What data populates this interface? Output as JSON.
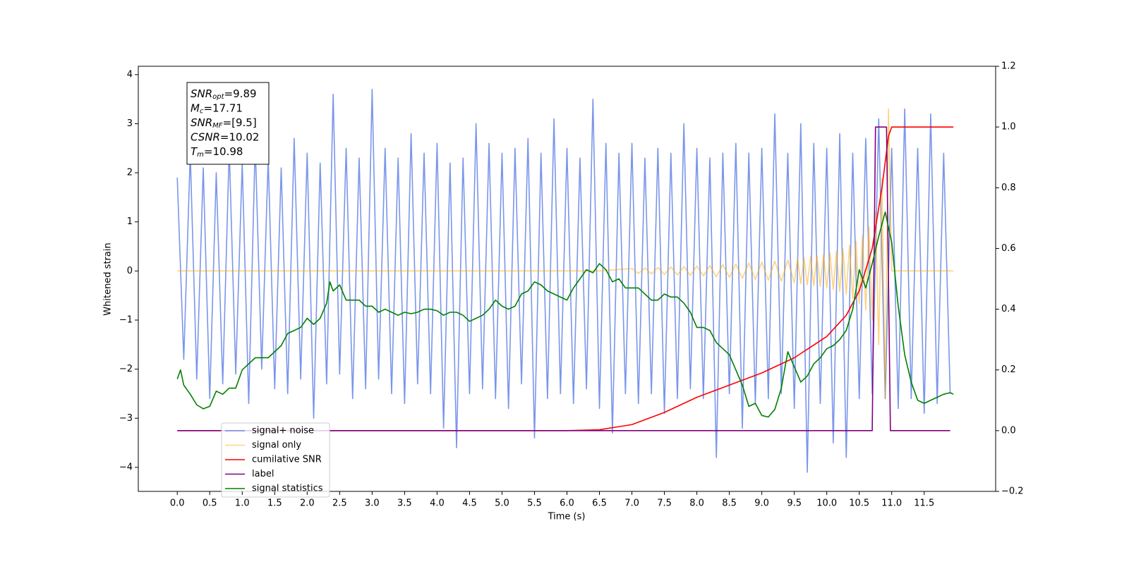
{
  "chart_data": {
    "type": "line",
    "xlabel": "Time (s)",
    "ylabel": "Whitened strain",
    "xlim": [
      -0.6,
      12.6
    ],
    "ylim": [
      -4.49,
      4.17
    ],
    "y2lim": [
      -0.2,
      1.2
    ],
    "xticks": [
      {
        "value": 0,
        "label": "0.0"
      },
      0.5,
      {
        "value": 1,
        "label": "1.0"
      },
      1.5,
      {
        "value": 2,
        "label": "2.0"
      },
      2.5,
      {
        "value": 3,
        "label": "3.0"
      },
      3.5,
      {
        "value": 4,
        "label": "4.0"
      },
      4.5,
      {
        "value": 5,
        "label": "5.0"
      },
      5.5,
      {
        "value": 6,
        "label": "6.0"
      },
      6.5,
      {
        "value": 7,
        "label": "7.0"
      },
      7.5,
      {
        "value": 8,
        "label": "8.0"
      },
      8.5,
      {
        "value": 9,
        "label": "9.0"
      },
      9.5,
      {
        "value": 10,
        "label": "10.0"
      },
      10.5,
      {
        "value": 11,
        "label": "11.0"
      },
      11.5
    ],
    "yticks": [
      {
        "value": -4,
        "label": "−4"
      },
      {
        "value": -3,
        "label": "−3"
      },
      {
        "value": -2,
        "label": "−2"
      },
      {
        "value": -1,
        "label": "−1"
      },
      0,
      1,
      2,
      3,
      4
    ],
    "y2ticks": [
      {
        "value": -0.2,
        "label": "−0.2"
      },
      {
        "value": 0,
        "label": "0.0"
      },
      0.2,
      0.4,
      0.6,
      0.8,
      {
        "value": 1,
        "label": "1.0"
      },
      1.2
    ],
    "grid": false,
    "legend": "lower left",
    "annotation": [
      {
        "main": "SNR",
        "sub": "opt",
        "rest": "=9.89"
      },
      {
        "main": "M",
        "sub": "c",
        "rest": "=17.71"
      },
      {
        "main": "SNR",
        "sub": "MF",
        "rest": "=[9.5]"
      },
      {
        "main": "CSNR",
        "rest": "=10.02"
      },
      {
        "main": "T",
        "sub": "m",
        "rest": "=10.98"
      }
    ],
    "series": [
      {
        "name": "signal+ noise",
        "color": "royalblue",
        "opacity": 0.7,
        "axis": "y",
        "x": [
          0,
          0.1,
          0.2,
          0.3,
          0.4,
          0.5,
          0.6,
          0.7,
          0.8,
          0.9,
          1,
          1.1,
          1.2,
          1.3,
          1.4,
          1.5,
          1.6,
          1.7,
          1.8,
          1.9,
          2,
          2.1,
          2.2,
          2.3,
          2.4,
          2.5,
          2.6,
          2.7,
          2.8,
          2.9,
          3,
          3.1,
          3.2,
          3.3,
          3.4,
          3.5,
          3.6,
          3.7,
          3.8,
          3.9,
          4,
          4.1,
          4.2,
          4.3,
          4.4,
          4.5,
          4.6,
          4.7,
          4.8,
          4.9,
          5,
          5.1,
          5.2,
          5.3,
          5.4,
          5.5,
          5.6,
          5.7,
          5.8,
          5.9,
          6,
          6.1,
          6.2,
          6.3,
          6.4,
          6.5,
          6.6,
          6.7,
          6.8,
          6.9,
          7,
          7.1,
          7.2,
          7.3,
          7.4,
          7.5,
          7.6,
          7.7,
          7.8,
          7.9,
          8,
          8.1,
          8.2,
          8.3,
          8.4,
          8.5,
          8.6,
          8.7,
          8.8,
          8.9,
          9,
          9.1,
          9.2,
          9.3,
          9.4,
          9.5,
          9.6,
          9.7,
          9.8,
          9.9,
          10,
          10.1,
          10.2,
          10.3,
          10.4,
          10.5,
          10.6,
          10.7,
          10.8,
          10.9,
          11,
          11.1,
          11.2,
          11.3,
          11.4,
          11.5,
          11.6,
          11.7,
          11.8,
          11.9
        ],
        "values": [
          1.9,
          -1.8,
          2.4,
          -2.2,
          2.1,
          -2.6,
          2.0,
          -2.3,
          2.5,
          -2.1,
          2.2,
          -2.7,
          2.6,
          -2.0,
          2.3,
          -2.4,
          2.1,
          -2.5,
          2.7,
          -2.2,
          2.4,
          -3.0,
          2.2,
          -2.3,
          3.6,
          -2.1,
          2.5,
          -2.6,
          2.3,
          -2.4,
          3.7,
          -2.2,
          2.5,
          -2.5,
          2.3,
          -2.7,
          2.8,
          -2.3,
          2.4,
          -2.5,
          2.6,
          -3.2,
          2.2,
          -3.6,
          2.3,
          -2.5,
          3.0,
          -2.4,
          2.6,
          -2.6,
          2.4,
          -2.8,
          2.5,
          -2.3,
          2.7,
          -3.4,
          2.4,
          -2.6,
          3.1,
          -2.5,
          2.5,
          -2.7,
          2.3,
          -2.4,
          3.5,
          -2.8,
          2.6,
          -3.3,
          2.4,
          -2.5,
          2.6,
          -2.7,
          2.3,
          -2.5,
          2.5,
          -2.9,
          2.4,
          -2.6,
          3.0,
          -2.4,
          2.5,
          -2.6,
          2.3,
          -3.8,
          2.4,
          -2.5,
          2.6,
          -3.2,
          2.4,
          -2.7,
          2.5,
          -2.6,
          3.2,
          -2.5,
          2.4,
          -2.8,
          3.0,
          -4.1,
          2.6,
          -2.7,
          2.5,
          -3.5,
          2.8,
          -3.8,
          2.4,
          -2.6,
          2.7,
          -2.5,
          3.1,
          -2.6,
          2.5,
          -2.8,
          3.3,
          -2.6,
          2.5,
          -2.9,
          3.2,
          -2.7,
          2.4,
          -2.5
        ]
      },
      {
        "name": "signal only",
        "color": "orange",
        "opacity": 0.5,
        "axis": "y",
        "x": [
          0,
          6.5,
          7,
          7.1,
          7.2,
          7.3,
          7.4,
          7.5,
          7.6,
          7.7,
          7.8,
          7.9,
          8,
          8.1,
          8.2,
          8.3,
          8.4,
          8.5,
          8.6,
          8.7,
          8.8,
          8.9,
          9,
          9.1,
          9.2,
          9.3,
          9.4,
          9.5,
          9.55,
          9.6,
          9.65,
          9.7,
          9.75,
          9.8,
          9.85,
          9.9,
          9.95,
          10,
          10.05,
          10.1,
          10.15,
          10.2,
          10.25,
          10.3,
          10.35,
          10.4,
          10.45,
          10.5,
          10.55,
          10.6,
          10.65,
          10.7,
          10.75,
          10.8,
          10.85,
          10.9,
          10.95,
          11,
          11.95
        ],
        "values": [
          0,
          0,
          0.05,
          -0.05,
          0.06,
          -0.06,
          0.07,
          -0.07,
          0.08,
          -0.08,
          0.09,
          -0.09,
          0.1,
          -0.1,
          0.11,
          -0.12,
          0.13,
          -0.13,
          0.14,
          -0.15,
          0.16,
          -0.17,
          0.18,
          -0.19,
          0.2,
          -0.21,
          0.22,
          -0.24,
          0.25,
          -0.26,
          0.27,
          -0.28,
          0.29,
          -0.3,
          0.31,
          -0.32,
          0.33,
          -0.35,
          0.36,
          -0.38,
          0.4,
          -0.42,
          0.45,
          -0.48,
          0.52,
          -0.56,
          0.6,
          -0.66,
          0.72,
          -0.8,
          0.9,
          -1.0,
          1.2,
          -1.5,
          1.9,
          -2.6,
          3.3,
          0,
          0
        ]
      },
      {
        "name": "cumilative SNR",
        "color": "red",
        "opacity": 1,
        "axis": "y2",
        "x": [
          0,
          6,
          6.5,
          7,
          7.5,
          8,
          8.5,
          9,
          9.5,
          10,
          10.3,
          10.5,
          10.7,
          10.85,
          10.95,
          11,
          11.95
        ],
        "values": [
          0,
          0,
          0.003,
          0.02,
          0.06,
          0.11,
          0.15,
          0.19,
          0.24,
          0.31,
          0.38,
          0.46,
          0.6,
          0.8,
          0.97,
          1.0,
          1.0
        ]
      },
      {
        "name": "label",
        "color": "purple",
        "opacity": 1,
        "axis": "y2",
        "x": [
          0,
          10.7,
          10.75,
          10.92,
          10.98,
          11.9
        ],
        "values": [
          0,
          0,
          1,
          1,
          0,
          0
        ]
      },
      {
        "name": "signal statistics",
        "color": "green",
        "opacity": 1,
        "axis": "y2",
        "x": [
          0,
          0.05,
          0.1,
          0.2,
          0.3,
          0.4,
          0.5,
          0.6,
          0.7,
          0.8,
          0.9,
          1,
          1.1,
          1.2,
          1.3,
          1.4,
          1.5,
          1.6,
          1.7,
          1.8,
          1.9,
          2,
          2.1,
          2.2,
          2.3,
          2.35,
          2.4,
          2.5,
          2.6,
          2.7,
          2.8,
          2.9,
          3,
          3.1,
          3.2,
          3.3,
          3.4,
          3.5,
          3.6,
          3.7,
          3.8,
          3.9,
          4,
          4.1,
          4.2,
          4.3,
          4.4,
          4.5,
          4.6,
          4.7,
          4.8,
          4.9,
          5,
          5.1,
          5.2,
          5.3,
          5.4,
          5.5,
          5.6,
          5.7,
          5.8,
          5.9,
          6,
          6.1,
          6.2,
          6.3,
          6.4,
          6.5,
          6.6,
          6.7,
          6.8,
          6.9,
          7,
          7.1,
          7.2,
          7.3,
          7.4,
          7.5,
          7.6,
          7.7,
          7.8,
          7.9,
          8,
          8.1,
          8.2,
          8.3,
          8.4,
          8.5,
          8.6,
          8.7,
          8.8,
          8.9,
          9,
          9.1,
          9.2,
          9.3,
          9.4,
          9.5,
          9.6,
          9.7,
          9.8,
          9.9,
          10,
          10.1,
          10.2,
          10.3,
          10.4,
          10.5,
          10.6,
          10.7,
          10.8,
          10.9,
          11,
          11.1,
          11.2,
          11.3,
          11.4,
          11.5,
          11.6,
          11.7,
          11.8,
          11.9,
          11.95
        ],
        "values": [
          0.17,
          0.2,
          0.15,
          0.12,
          0.085,
          0.072,
          0.08,
          0.13,
          0.12,
          0.14,
          0.14,
          0.2,
          0.22,
          0.24,
          0.24,
          0.24,
          0.26,
          0.28,
          0.32,
          0.33,
          0.34,
          0.37,
          0.35,
          0.37,
          0.42,
          0.49,
          0.46,
          0.48,
          0.43,
          0.43,
          0.43,
          0.41,
          0.41,
          0.39,
          0.4,
          0.39,
          0.38,
          0.39,
          0.385,
          0.39,
          0.4,
          0.4,
          0.395,
          0.38,
          0.39,
          0.39,
          0.38,
          0.36,
          0.37,
          0.38,
          0.4,
          0.43,
          0.41,
          0.4,
          0.41,
          0.45,
          0.46,
          0.49,
          0.48,
          0.46,
          0.45,
          0.44,
          0.43,
          0.47,
          0.5,
          0.53,
          0.52,
          0.55,
          0.53,
          0.49,
          0.5,
          0.47,
          0.47,
          0.47,
          0.45,
          0.43,
          0.43,
          0.45,
          0.44,
          0.44,
          0.42,
          0.39,
          0.34,
          0.34,
          0.33,
          0.29,
          0.27,
          0.25,
          0.2,
          0.15,
          0.08,
          0.09,
          0.05,
          0.045,
          0.07,
          0.14,
          0.26,
          0.21,
          0.16,
          0.18,
          0.22,
          0.24,
          0.27,
          0.28,
          0.3,
          0.33,
          0.4,
          0.53,
          0.47,
          0.55,
          0.64,
          0.72,
          0.62,
          0.41,
          0.25,
          0.16,
          0.1,
          0.09,
          0.1,
          0.11,
          0.12,
          0.125,
          0.12
        ]
      }
    ]
  }
}
